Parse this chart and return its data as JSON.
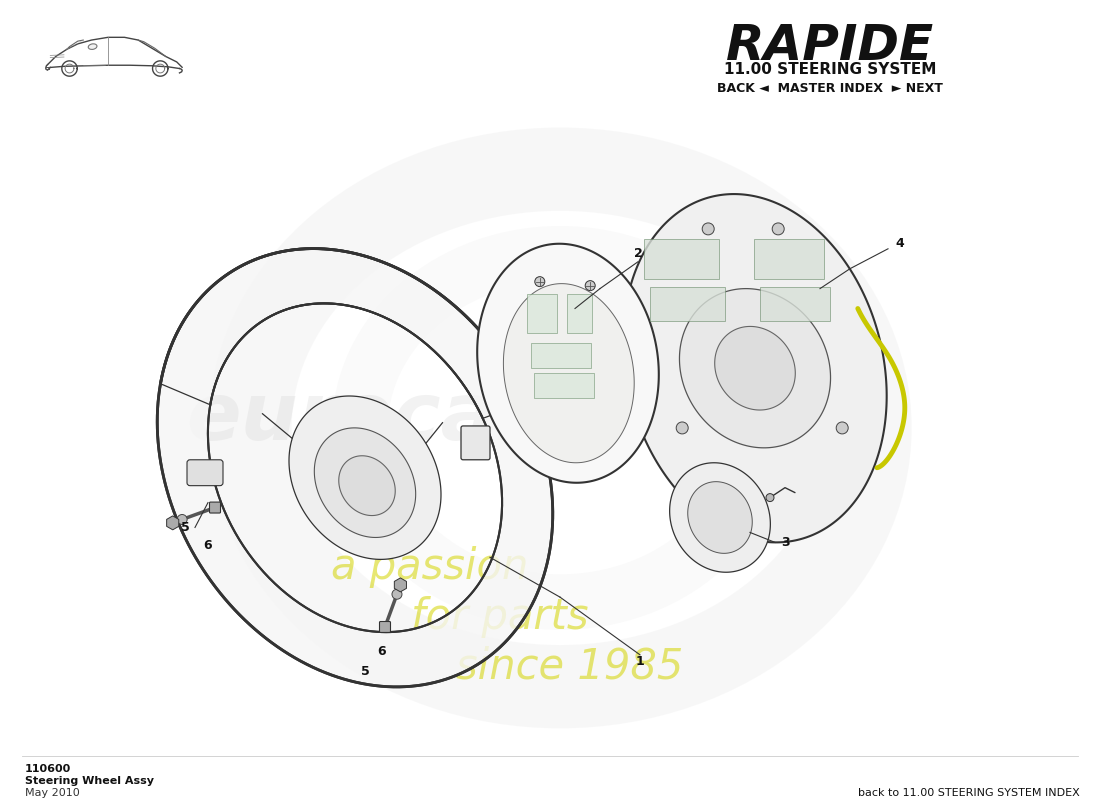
{
  "title": "RAPIDE",
  "subtitle": "11.00 STEERING SYSTEM",
  "nav_text": "BACK ◄  MASTER INDEX  ► NEXT",
  "footer_code": "110600",
  "footer_name": "Steering Wheel Assy",
  "footer_date": "May 2010",
  "footer_right": "back to 11.00 STEERING SYSTEM INDEX",
  "background_color": "#ffffff",
  "watermark_text1": "a passion",
  "watermark_text2": "for parts",
  "watermark_text3": "since 1985",
  "line_color": "#333333",
  "light_line": "#888888",
  "label_color": "#111111"
}
